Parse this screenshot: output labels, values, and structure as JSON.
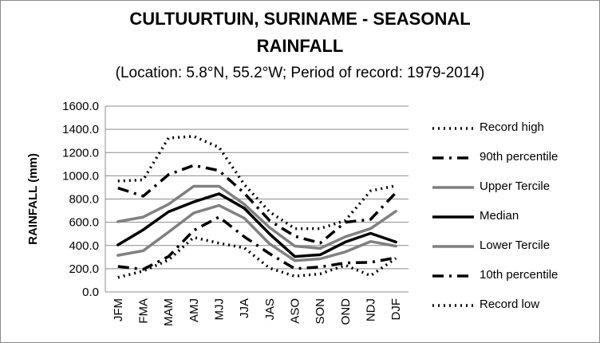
{
  "chart_data": {
    "type": "line",
    "title_line1": "CULTUURTUIN, SURINAME - SEASONAL",
    "title_line2": "RAINFALL",
    "subtitle": "(Location: 5.8°N, 55.2°W; Period of record: 1979-2014)",
    "ylabel": "RAINFALL (mm)",
    "xlabel": "",
    "ylim": [
      0,
      1600
    ],
    "y_ticks": [
      "0.0",
      "200.0",
      "400.0",
      "600.0",
      "800.0",
      "1000.0",
      "1200.0",
      "1400.0",
      "1600.0"
    ],
    "categories": [
      "JFM",
      "FMA",
      "MAM",
      "AMJ",
      "MJJ",
      "JJA",
      "JAS",
      "ASO",
      "SON",
      "OND",
      "NDJ",
      "DJF"
    ],
    "grid": true,
    "legend_position": "right",
    "series": [
      {
        "name": "Record high",
        "color": "#000000",
        "style": "dotted",
        "values": [
          955,
          965,
          1325,
          1340,
          1245,
          925,
          690,
          545,
          545,
          615,
          870,
          915
        ]
      },
      {
        "name": "90th percentile",
        "color": "#000000",
        "style": "dashdot",
        "values": [
          895,
          825,
          1010,
          1090,
          1045,
          850,
          615,
          480,
          420,
          600,
          625,
          855
        ]
      },
      {
        "name": "Upper Tercile",
        "color": "#808080",
        "style": "solid",
        "values": [
          605,
          645,
          755,
          910,
          910,
          755,
          555,
          395,
          375,
          475,
          545,
          695
        ]
      },
      {
        "name": "Median",
        "color": "#000000",
        "style": "solid",
        "values": [
          405,
          535,
          690,
          775,
          845,
          720,
          500,
          305,
          320,
          430,
          505,
          430
        ]
      },
      {
        "name": "Lower Tercile",
        "color": "#808080",
        "style": "solid",
        "values": [
          315,
          355,
          515,
          680,
          745,
          635,
          415,
          270,
          285,
          345,
          435,
          395
        ]
      },
      {
        "name": "10th percentile",
        "color": "#000000",
        "style": "dashdot",
        "values": [
          220,
          195,
          305,
          530,
          645,
          475,
          330,
          200,
          215,
          250,
          255,
          295
        ]
      },
      {
        "name": "Record low",
        "color": "#000000",
        "style": "dotted",
        "values": [
          125,
          180,
          275,
          470,
          420,
          380,
          205,
          135,
          155,
          230,
          140,
          290
        ]
      }
    ]
  }
}
